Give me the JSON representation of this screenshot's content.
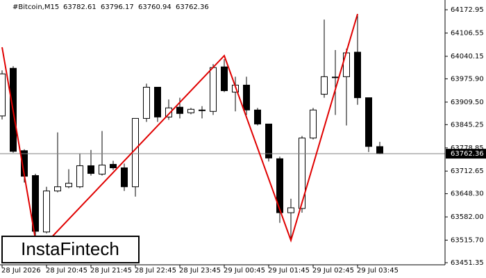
{
  "chart_data": {
    "type": "candlestick",
    "symbol": "#Bitcoin,M15",
    "watermark": "InstaFintech",
    "categories": [
      "28 Jul 2026",
      null,
      null,
      null,
      "28 Jul 20:45",
      null,
      null,
      null,
      "28 Jul 21:45",
      null,
      null,
      null,
      "28 Jul 22:45",
      null,
      null,
      null,
      "28 Jul 23:45",
      null,
      null,
      null,
      "29 Jul 00:45",
      null,
      null,
      null,
      "29 Jul 01:45",
      null,
      null,
      null,
      "29 Jul 02:45",
      null,
      null,
      null,
      "29 Jul 03:45",
      null,
      null
    ],
    "series": [
      {
        "up_color": "#ffffff",
        "down_color": "#000000",
        "edge_color": "#000000",
        "open": [
          63870,
          64006,
          63771,
          63700,
          63539,
          63656,
          63668,
          63668,
          63728,
          63704,
          63732,
          63722,
          63668,
          63863,
          63952,
          63867,
          63895,
          63879,
          63886,
          63883,
          64010,
          63938,
          63958,
          63887,
          63847,
          63748,
          63594,
          63606,
          63807,
          63932,
          63980,
          63982,
          64052,
          63922,
          63782.61
        ],
        "high": [
          64000,
          64012,
          63775,
          63705,
          63668,
          63823,
          63718,
          63763,
          63773,
          63827,
          63742,
          63734,
          63863,
          63962,
          63952,
          63917,
          63922,
          63893,
          63898,
          64018,
          64032,
          63982,
          63982,
          63893,
          63847,
          63754,
          63634,
          63813,
          63893,
          64145,
          64058,
          64062,
          64161,
          63922,
          63796.17
        ],
        "low": [
          63860,
          63765,
          63680,
          63525,
          63535,
          63652,
          63664,
          63664,
          63700,
          63700,
          63716,
          63656,
          63640,
          63853,
          63853,
          63859,
          63863,
          63875,
          63863,
          63873,
          63938,
          63883,
          63873,
          63843,
          63740,
          63565,
          63515,
          63594,
          63803,
          63922,
          63873,
          63843,
          63902,
          63767,
          63760.94
        ],
        "close": [
          63990,
          63769,
          63698,
          63541,
          63656,
          63668,
          63678,
          63728,
          63706,
          63730,
          63722,
          63668,
          63863,
          63952,
          63867,
          63893,
          63877,
          63889,
          63887,
          64008,
          63942,
          63958,
          63887,
          63847,
          63750,
          63594,
          63608,
          63807,
          63887,
          63982,
          63981,
          64050,
          63922,
          63783,
          63762.36
        ]
      }
    ],
    "pattern": {
      "color": "#e00000",
      "x": [
        0,
        3.2,
        20,
        26,
        32
      ],
      "values": [
        64066,
        63482,
        64042,
        63515,
        64161
      ]
    },
    "price_line_color": "#808080",
    "ylim": [
      63445.39,
      64200.78
    ],
    "yticks": [
      64172.95,
      64106.55,
      64040.15,
      {
        "value": 63975.9,
        "label": "63975.90"
      },
      {
        "value": 63909.5,
        "label": "63909.50"
      },
      63845.25,
      63778.85,
      63712.65,
      {
        "value": 63648.3,
        "label": "63648.30"
      },
      {
        "value": 63582.0,
        "label": "63582.00"
      },
      {
        "value": 63515.7,
        "label": "63515.70"
      },
      63451.35
    ]
  }
}
